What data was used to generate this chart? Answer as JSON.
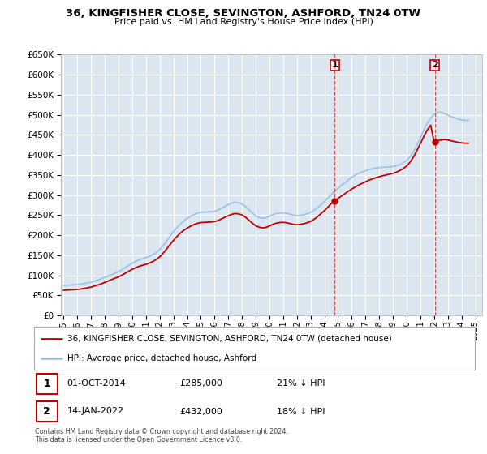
{
  "title": "36, KINGFISHER CLOSE, SEVINGTON, ASHFORD, TN24 0TW",
  "subtitle": "Price paid vs. HM Land Registry's House Price Index (HPI)",
  "xlim": [
    1994.8,
    2025.5
  ],
  "ylim": [
    0,
    650000
  ],
  "yticks": [
    0,
    50000,
    100000,
    150000,
    200000,
    250000,
    300000,
    350000,
    400000,
    450000,
    500000,
    550000,
    600000,
    650000
  ],
  "bg_color": "#dce6f1",
  "grid_color": "#ffffff",
  "red_color": "#c00000",
  "blue_color": "#9dc3e6",
  "legend_label_red": "36, KINGFISHER CLOSE, SEVINGTON, ASHFORD, TN24 0TW (detached house)",
  "legend_label_blue": "HPI: Average price, detached house, Ashford",
  "transaction1_x": 2014.75,
  "transaction1_y": 285000,
  "transaction2_x": 2022.04,
  "transaction2_y": 432000,
  "note1_date": "01-OCT-2014",
  "note1_price": "£285,000",
  "note1_hpi": "21% ↓ HPI",
  "note2_date": "14-JAN-2022",
  "note2_price": "£432,000",
  "note2_hpi": "18% ↓ HPI",
  "copyright_text": "Contains HM Land Registry data © Crown copyright and database right 2024.\nThis data is licensed under the Open Government Licence v3.0.",
  "hpi_x": [
    1995.0,
    1995.25,
    1995.5,
    1995.75,
    1996.0,
    1996.25,
    1996.5,
    1996.75,
    1997.0,
    1997.25,
    1997.5,
    1997.75,
    1998.0,
    1998.25,
    1998.5,
    1998.75,
    1999.0,
    1999.25,
    1999.5,
    1999.75,
    2000.0,
    2000.25,
    2000.5,
    2000.75,
    2001.0,
    2001.25,
    2001.5,
    2001.75,
    2002.0,
    2002.25,
    2002.5,
    2002.75,
    2003.0,
    2003.25,
    2003.5,
    2003.75,
    2004.0,
    2004.25,
    2004.5,
    2004.75,
    2005.0,
    2005.25,
    2005.5,
    2005.75,
    2006.0,
    2006.25,
    2006.5,
    2006.75,
    2007.0,
    2007.25,
    2007.5,
    2007.75,
    2008.0,
    2008.25,
    2008.5,
    2008.75,
    2009.0,
    2009.25,
    2009.5,
    2009.75,
    2010.0,
    2010.25,
    2010.5,
    2010.75,
    2011.0,
    2011.25,
    2011.5,
    2011.75,
    2012.0,
    2012.25,
    2012.5,
    2012.75,
    2013.0,
    2013.25,
    2013.5,
    2013.75,
    2014.0,
    2014.25,
    2014.5,
    2014.75,
    2015.0,
    2015.25,
    2015.5,
    2015.75,
    2016.0,
    2016.25,
    2016.5,
    2016.75,
    2017.0,
    2017.25,
    2017.5,
    2017.75,
    2018.0,
    2018.25,
    2018.5,
    2018.75,
    2019.0,
    2019.25,
    2019.5,
    2019.75,
    2020.0,
    2020.25,
    2020.5,
    2020.75,
    2021.0,
    2021.25,
    2021.5,
    2021.75,
    2022.0,
    2022.25,
    2022.5,
    2022.75,
    2023.0,
    2023.25,
    2023.5,
    2023.75,
    2024.0,
    2024.25,
    2024.5
  ],
  "hpi_y": [
    75000,
    75500,
    76000,
    76500,
    77000,
    78000,
    79500,
    81000,
    83000,
    85500,
    88500,
    91500,
    95000,
    98500,
    102000,
    105500,
    109500,
    114000,
    119500,
    125000,
    130000,
    134500,
    138500,
    141500,
    144000,
    147000,
    151500,
    157000,
    164000,
    174000,
    185500,
    197500,
    208000,
    218500,
    227500,
    235000,
    241500,
    247000,
    251500,
    255000,
    257000,
    257500,
    258000,
    258500,
    259500,
    262500,
    267000,
    271500,
    276000,
    280000,
    282000,
    281000,
    278000,
    271500,
    263500,
    255500,
    248000,
    244000,
    242000,
    243500,
    247000,
    251000,
    254000,
    255500,
    255500,
    254500,
    252500,
    250000,
    248500,
    249500,
    251000,
    253500,
    257000,
    262000,
    268500,
    276000,
    284000,
    292000,
    301000,
    309500,
    317000,
    324000,
    331000,
    338000,
    344000,
    349500,
    354000,
    357500,
    360500,
    363500,
    365500,
    367500,
    368500,
    369000,
    369500,
    370000,
    371000,
    373000,
    376000,
    380000,
    386000,
    395000,
    408000,
    424000,
    442000,
    462000,
    479000,
    492000,
    501000,
    506000,
    506000,
    503000,
    499000,
    495000,
    492000,
    489000,
    487000,
    486000,
    486000
  ],
  "red_x": [
    1995.0,
    1995.25,
    1995.5,
    1995.75,
    1996.0,
    1996.25,
    1996.5,
    1996.75,
    1997.0,
    1997.25,
    1997.5,
    1997.75,
    1998.0,
    1998.25,
    1998.5,
    1998.75,
    1999.0,
    1999.25,
    1999.5,
    1999.75,
    2000.0,
    2000.25,
    2000.5,
    2000.75,
    2001.0,
    2001.25,
    2001.5,
    2001.75,
    2002.0,
    2002.25,
    2002.5,
    2002.75,
    2003.0,
    2003.25,
    2003.5,
    2003.75,
    2004.0,
    2004.25,
    2004.5,
    2004.75,
    2005.0,
    2005.25,
    2005.5,
    2005.75,
    2006.0,
    2006.25,
    2006.5,
    2006.75,
    2007.0,
    2007.25,
    2007.5,
    2007.75,
    2008.0,
    2008.25,
    2008.5,
    2008.75,
    2009.0,
    2009.25,
    2009.5,
    2009.75,
    2010.0,
    2010.25,
    2010.5,
    2010.75,
    2011.0,
    2011.25,
    2011.5,
    2011.75,
    2012.0,
    2012.25,
    2012.5,
    2012.75,
    2013.0,
    2013.25,
    2013.5,
    2013.75,
    2014.0,
    2014.25,
    2014.5,
    2014.75,
    2015.0,
    2015.25,
    2015.5,
    2015.75,
    2016.0,
    2016.25,
    2016.5,
    2016.75,
    2017.0,
    2017.25,
    2017.5,
    2017.75,
    2018.0,
    2018.25,
    2018.5,
    2018.75,
    2019.0,
    2019.25,
    2019.5,
    2019.75,
    2020.0,
    2020.25,
    2020.5,
    2020.75,
    2021.0,
    2021.25,
    2021.5,
    2021.75,
    2022.0,
    2022.25,
    2022.5,
    2022.75,
    2023.0,
    2023.25,
    2023.5,
    2023.75,
    2024.0,
    2024.25,
    2024.5
  ],
  "red_y": [
    63000,
    63500,
    64000,
    64500,
    65000,
    66000,
    67500,
    69000,
    71000,
    73500,
    76000,
    79000,
    82500,
    86000,
    89500,
    93000,
    96500,
    100500,
    105500,
    110500,
    115000,
    119000,
    122500,
    125000,
    127500,
    130500,
    134500,
    139500,
    146000,
    155000,
    165500,
    176500,
    187000,
    196500,
    205000,
    212000,
    217500,
    222500,
    226500,
    229500,
    231500,
    232000,
    232500,
    233000,
    234000,
    236500,
    240500,
    244500,
    248500,
    252000,
    254000,
    253000,
    250500,
    245000,
    237500,
    230000,
    223500,
    220000,
    218000,
    219500,
    223000,
    227000,
    230000,
    231500,
    232000,
    231000,
    229000,
    227000,
    226000,
    227000,
    228500,
    231000,
    234500,
    239500,
    246000,
    253500,
    261000,
    269500,
    278500,
    285000,
    291500,
    297500,
    303500,
    309500,
    315000,
    320000,
    325000,
    329000,
    333000,
    337000,
    340000,
    343000,
    345500,
    348000,
    350000,
    352000,
    354000,
    357000,
    361000,
    366000,
    372000,
    382000,
    395000,
    411000,
    428000,
    446000,
    462000,
    474000,
    432000,
    435000,
    437000,
    438000,
    437000,
    435000,
    433000,
    431000,
    430000,
    429000,
    429000
  ]
}
